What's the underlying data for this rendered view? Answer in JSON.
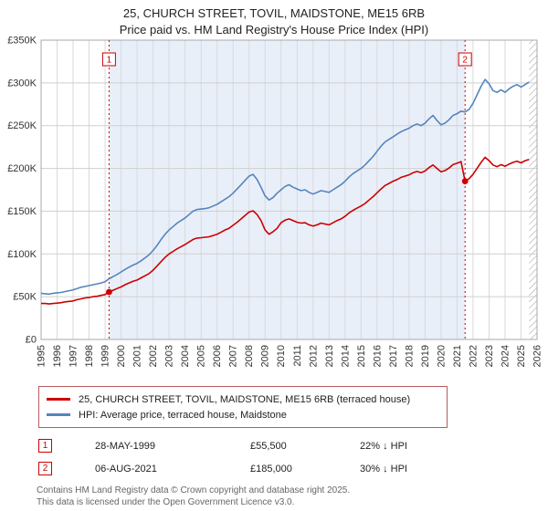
{
  "title": "25, CHURCH STREET, TOVIL, MAIDSTONE, ME15 6RB",
  "subtitle": "Price paid vs. HM Land Registry's House Price Index (HPI)",
  "chart_data": {
    "type": "line",
    "xlim": [
      1995,
      2026
    ],
    "ylim": [
      0,
      350
    ],
    "x_step": 0.25,
    "y_ticks": [
      "£0",
      "£50K",
      "£100K",
      "£150K",
      "£200K",
      "£250K",
      "£300K",
      "£350K"
    ],
    "x_ticks": [
      1995,
      1996,
      1997,
      1998,
      1999,
      2000,
      2001,
      2002,
      2003,
      2004,
      2005,
      2006,
      2007,
      2008,
      2009,
      2010,
      2011,
      2012,
      2013,
      2014,
      2015,
      2016,
      2017,
      2018,
      2019,
      2020,
      2021,
      2022,
      2023,
      2024,
      2025,
      2026
    ],
    "colors": {
      "shade": "#e9eff9",
      "marker": "#cc0000",
      "marker_dot": "#cc0000",
      "grid_h": "#cfcfcf",
      "grid_v": "#d9d9d9",
      "border": "#a9a9a9"
    },
    "shaded_region": [
      1999.25,
      2021.5
    ],
    "hatch_region": [
      2025.5,
      2026
    ],
    "markers": [
      {
        "label": "1",
        "x": 1999.25,
        "y": 55.5
      },
      {
        "label": "2",
        "x": 2021.5,
        "y": 185
      }
    ],
    "series": [
      {
        "name": "25, CHURCH STREET, TOVIL, MAIDSTONE, ME15 6RB (terraced house)",
        "color": "#cc0000",
        "values": [
          42,
          42,
          41.5,
          42,
          42.5,
          43,
          44,
          44.5,
          45,
          46.5,
          47.5,
          48.5,
          49,
          50,
          50.5,
          51.5,
          52.5,
          55.5,
          57.5,
          59.5,
          61.5,
          64,
          66,
          68,
          69.5,
          72,
          74.5,
          77,
          81,
          86,
          91,
          96,
          100,
          103,
          106,
          108.5,
          111,
          114,
          117,
          118.5,
          119,
          119.5,
          120,
          121.5,
          123,
          125.5,
          128,
          130,
          133.5,
          137,
          141,
          145,
          149,
          150.5,
          146,
          139,
          128,
          123,
          126,
          130,
          136.5,
          139.5,
          141,
          139,
          137,
          136,
          136.5,
          134,
          132.5,
          134,
          136,
          135,
          134,
          136.5,
          139,
          141,
          144,
          148,
          151,
          153.5,
          156,
          159,
          163,
          167,
          171.5,
          176,
          180,
          182.5,
          185,
          187,
          189.5,
          191,
          192.5,
          195,
          196.5,
          195,
          197,
          201,
          204,
          200,
          196,
          197.5,
          200.5,
          204.5,
          206,
          208,
          185,
          188,
          193,
          200,
          207,
          213,
          209,
          204,
          202,
          204.5,
          202.5,
          205,
          207,
          208.5,
          206.5,
          209,
          210.5
        ]
      },
      {
        "name": "HPI: Average price, terraced house, Maidstone",
        "color": "#5585bd",
        "values": [
          54,
          53.5,
          53,
          54,
          54.5,
          55,
          56,
          57,
          58,
          59.5,
          61,
          62,
          63,
          64,
          65,
          66,
          67.5,
          71,
          73.5,
          76,
          79,
          82,
          84.5,
          87,
          89,
          92,
          95.5,
          99,
          104,
          110,
          117,
          123,
          128,
          132,
          136,
          139,
          142,
          146,
          150,
          152,
          152.5,
          153,
          154,
          156,
          158,
          161,
          164,
          167,
          171,
          176,
          181,
          186,
          191,
          193,
          187,
          178,
          168,
          163,
          166,
          171,
          175,
          179,
          181,
          178,
          176,
          174,
          175,
          172,
          170,
          172,
          174,
          173,
          172,
          175,
          178,
          181,
          185,
          190,
          194,
          197,
          200,
          204,
          209,
          214,
          220,
          226,
          231,
          234,
          237,
          240,
          243,
          245,
          247,
          250,
          252,
          250,
          253,
          258,
          262,
          256,
          251,
          253,
          257,
          262,
          264,
          267,
          266,
          269,
          276,
          286,
          296,
          304,
          299,
          291,
          289,
          292,
          289,
          293,
          296,
          298,
          295,
          298,
          301
        ]
      }
    ]
  },
  "sales": [
    {
      "num": "1",
      "date": "28-MAY-1999",
      "price": "£55,500",
      "hpi": "22% ↓ HPI"
    },
    {
      "num": "2",
      "date": "06-AUG-2021",
      "price": "£185,000",
      "hpi": "30% ↓ HPI"
    }
  ],
  "footer": {
    "line1": "Contains HM Land Registry data © Crown copyright and database right 2025.",
    "line2": "This data is licensed under the Open Government Licence v3.0."
  }
}
